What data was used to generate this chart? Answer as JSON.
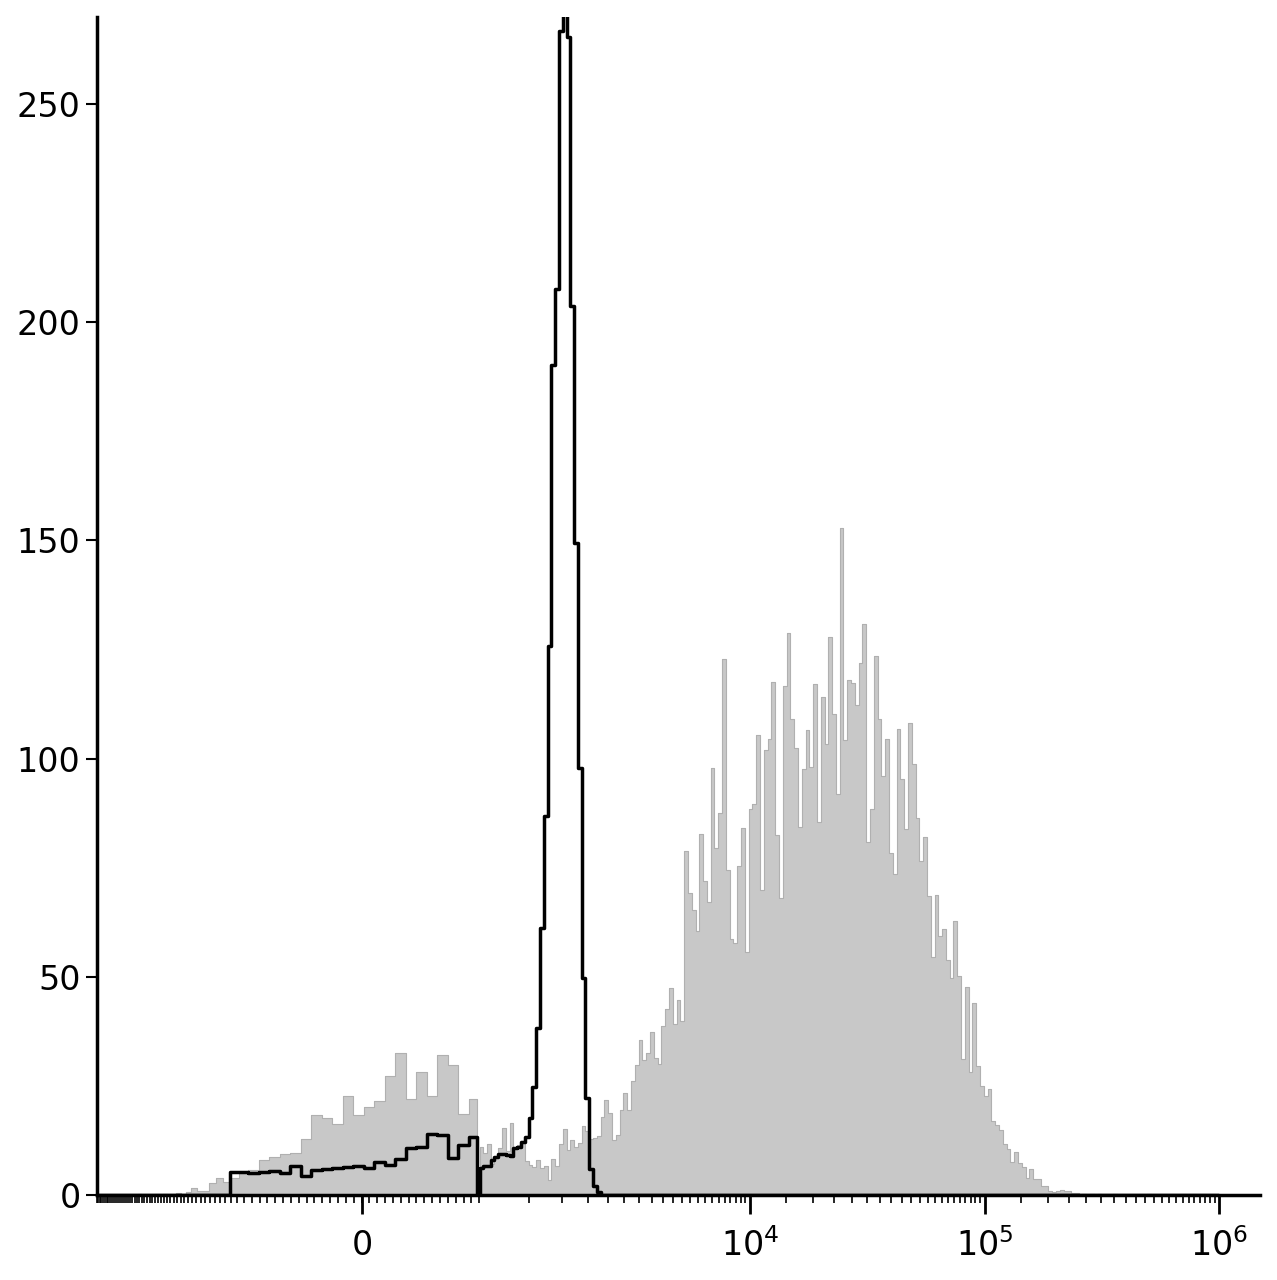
{
  "title": "",
  "ylim": [
    0,
    270
  ],
  "yticks": [
    0,
    50,
    100,
    150,
    200,
    250
  ],
  "background_color": "#ffffff",
  "gray_fill_color": "#c8c8c8",
  "gray_edge_color": "#b0b0b0",
  "black_line_color": "#000000",
  "linewidth_black": 2.5,
  "linewidth_gray": 0.8,
  "tick_fontsize": 24,
  "symlog_linthresh": 700,
  "symlog_linscale": 0.45,
  "xlim_low": -3000,
  "xlim_high": 1500000,
  "n_bins": 256,
  "black_peak_height": 265,
  "gray_peak_height": 125,
  "seed": 17
}
